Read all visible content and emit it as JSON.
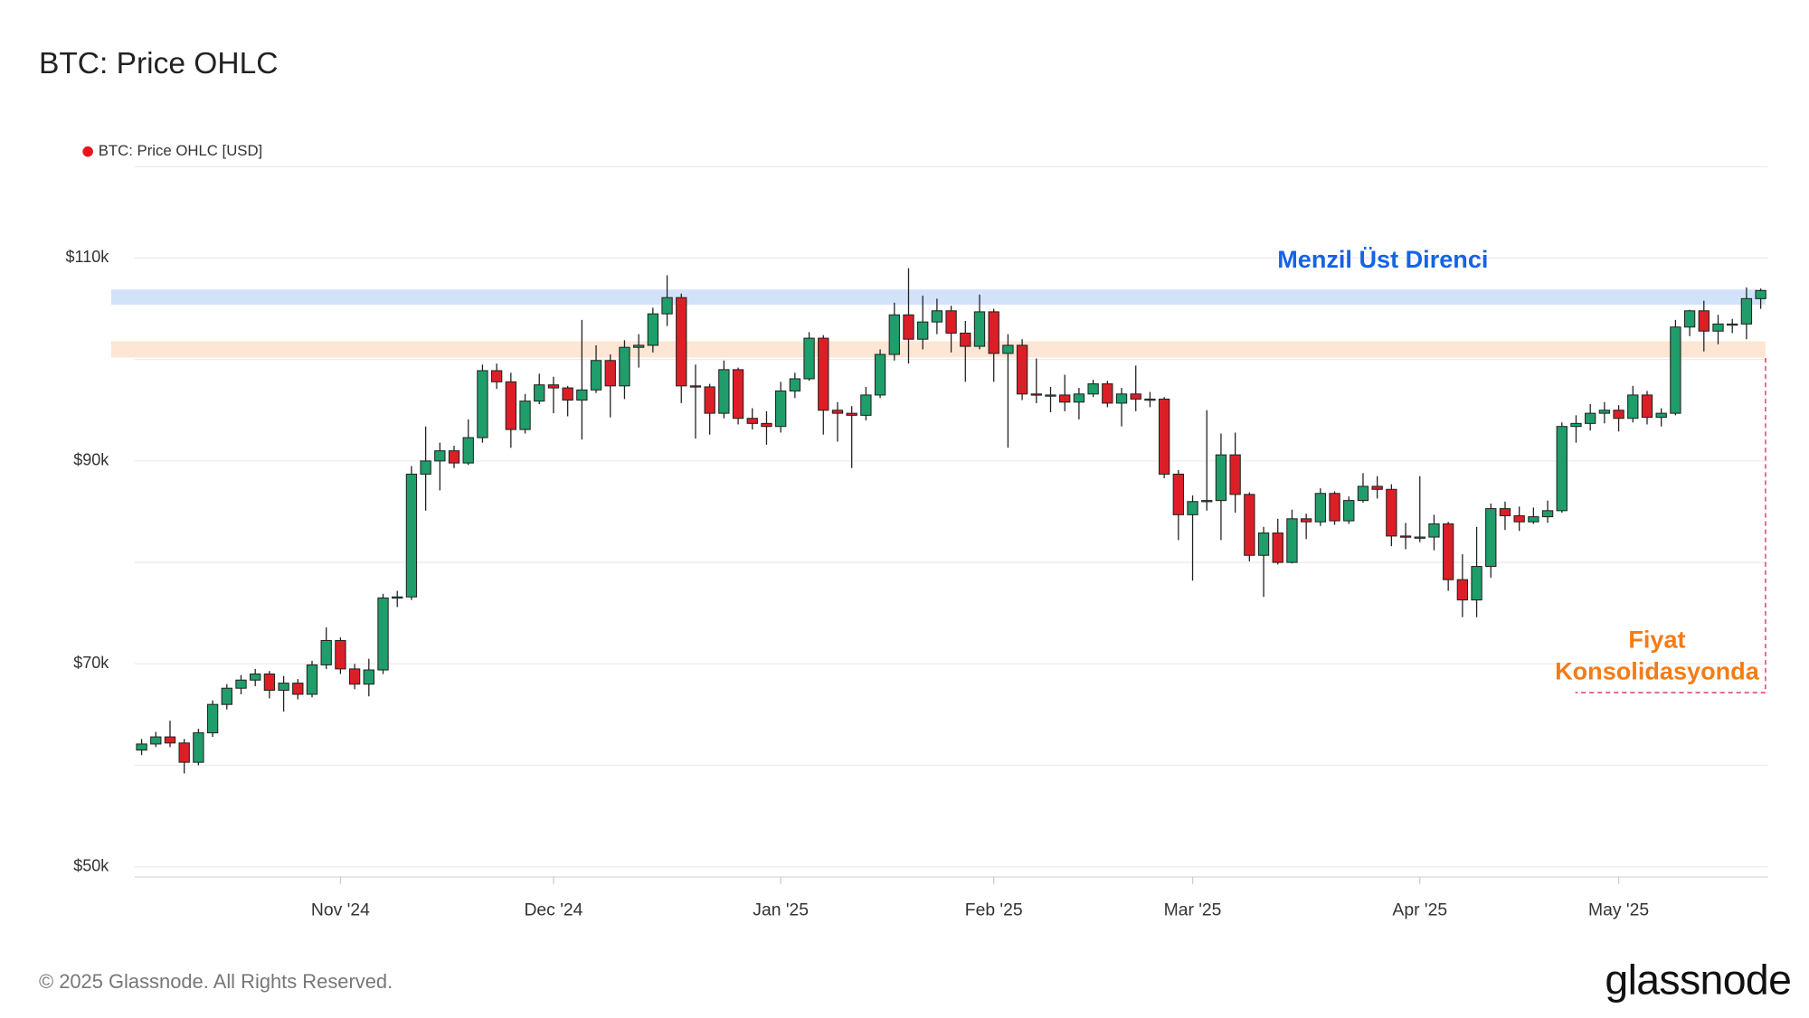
{
  "chart_data": {
    "type": "candlestick",
    "title": "BTC: Price OHLC",
    "legend": {
      "label": "BTC: Price OHLC [USD]",
      "color": "#e8141b",
      "position": "top-left"
    },
    "footer": "© 2025 Glassnode. All Rights Reserved.",
    "brand": "glassnode",
    "categories": [
      null,
      null,
      null,
      null,
      null,
      null,
      null,
      null,
      null,
      null,
      null,
      null,
      null,
      null,
      "Nov '24",
      null,
      null,
      null,
      null,
      null,
      null,
      null,
      null,
      null,
      null,
      null,
      null,
      null,
      null,
      "Dec '24",
      null,
      null,
      null,
      null,
      null,
      null,
      null,
      null,
      null,
      null,
      null,
      null,
      null,
      null,
      null,
      "Jan '25",
      null,
      null,
      null,
      null,
      null,
      null,
      null,
      null,
      null,
      null,
      null,
      null,
      null,
      null,
      "Feb '25",
      null,
      null,
      null,
      null,
      null,
      null,
      null,
      null,
      null,
      null,
      null,
      null,
      null,
      "Mar '25",
      null,
      null,
      null,
      null,
      null,
      null,
      null,
      null,
      null,
      null,
      null,
      null,
      null,
      null,
      null,
      "Apr '25",
      null,
      null,
      null,
      null,
      null,
      null,
      null,
      null,
      null,
      null,
      null,
      null,
      null,
      "May '25",
      null,
      null,
      null,
      null,
      null,
      null,
      null,
      null,
      null,
      null
    ],
    "open": [
      61500,
      62100,
      62800,
      62200,
      60300,
      63200,
      66000,
      67600,
      68400,
      69000,
      67400,
      68100,
      67000,
      69900,
      72300,
      69500,
      68000,
      69400,
      76500,
      76600,
      88700,
      90000,
      91000,
      89800,
      92300,
      98900,
      97800,
      93100,
      95900,
      97500,
      97200,
      96000,
      97000,
      99900,
      97400,
      101200,
      101400,
      104500,
      106100,
      97400,
      97300,
      94700,
      99000,
      94200,
      93700,
      93400,
      96900,
      98100,
      102100,
      95000,
      94700,
      94500,
      96500,
      100500,
      104400,
      102000,
      103700,
      104800,
      102600,
      101300,
      104700,
      100600,
      101400,
      96600,
      96500,
      96500,
      95800,
      96600,
      97600,
      95700,
      96600,
      96100,
      96100,
      88700,
      84700,
      86000,
      86100,
      90600,
      86700,
      80700,
      82900,
      80000,
      84300,
      84000,
      86800,
      84100,
      86100,
      87500,
      87200,
      82600,
      82500,
      82500,
      83800,
      78300,
      76300,
      79600,
      85300,
      84600,
      84000,
      84500,
      85100,
      93400,
      93700,
      94700,
      95000,
      94200,
      96500,
      94300,
      94700,
      103200,
      104800,
      102800,
      103500,
      103500,
      106000
    ],
    "high": [
      62600,
      63300,
      64400,
      62600,
      63600,
      66400,
      68000,
      68900,
      69500,
      69300,
      68800,
      68500,
      70300,
      73600,
      72600,
      70000,
      70500,
      76900,
      77200,
      89500,
      93400,
      91800,
      91500,
      94100,
      99500,
      99600,
      98700,
      96600,
      98600,
      98300,
      97400,
      103900,
      101400,
      100500,
      101900,
      102500,
      105100,
      108300,
      106500,
      99500,
      97600,
      99900,
      99200,
      95200,
      94900,
      97800,
      98700,
      102700,
      102400,
      95800,
      95400,
      97300,
      101000,
      105600,
      109000,
      106300,
      106000,
      105300,
      103800,
      106400,
      105000,
      102500,
      102000,
      100100,
      97300,
      98500,
      97200,
      98000,
      97900,
      97200,
      99400,
      96800,
      96300,
      89100,
      86600,
      95000,
      92700,
      92800,
      86900,
      83500,
      84300,
      85200,
      84800,
      87300,
      87000,
      86500,
      88800,
      88500,
      87700,
      83900,
      88500,
      84700,
      84000,
      80800,
      83500,
      85800,
      86000,
      85500,
      85400,
      86100,
      93800,
      94500,
      95600,
      95800,
      95500,
      97400,
      96900,
      95200,
      103900,
      104900,
      105800,
      104400,
      104000,
      107100,
      107000
    ],
    "low": [
      61000,
      61800,
      61800,
      59200,
      60000,
      62800,
      65500,
      67000,
      67800,
      66600,
      65300,
      66500,
      66700,
      69500,
      69000,
      67500,
      66800,
      69000,
      75600,
      76300,
      85100,
      87100,
      89300,
      89600,
      91800,
      97100,
      91300,
      92700,
      95600,
      94700,
      94400,
      92100,
      96700,
      94300,
      96100,
      99200,
      100700,
      103300,
      95700,
      92200,
      92600,
      94200,
      93600,
      93100,
      91600,
      92800,
      96200,
      97900,
      92600,
      91900,
      89300,
      94000,
      96200,
      99900,
      99600,
      101000,
      102500,
      100700,
      97800,
      101000,
      97800,
      91300,
      96000,
      95700,
      94800,
      94900,
      94100,
      96300,
      95300,
      93400,
      94900,
      95300,
      88300,
      82200,
      78200,
      85100,
      82200,
      84900,
      80100,
      76600,
      79800,
      79900,
      82300,
      83600,
      83700,
      83800,
      85900,
      86300,
      81600,
      81300,
      82000,
      81200,
      77200,
      74600,
      74600,
      78500,
      83200,
      83100,
      83800,
      83900,
      84900,
      91800,
      93000,
      93700,
      92900,
      93800,
      93600,
      93400,
      94500,
      102300,
      100800,
      101500,
      102600,
      102000,
      105000
    ],
    "close": [
      62100,
      62800,
      62200,
      60300,
      63200,
      66000,
      67600,
      68400,
      69000,
      67400,
      68100,
      67000,
      69900,
      72300,
      69500,
      68000,
      69400,
      76500,
      76600,
      88700,
      90000,
      91000,
      89800,
      92300,
      98900,
      97800,
      93100,
      95900,
      97500,
      97200,
      96000,
      97000,
      99900,
      97400,
      101200,
      101400,
      104500,
      106100,
      97400,
      97300,
      94700,
      99000,
      94200,
      93700,
      93400,
      96900,
      98100,
      102100,
      95000,
      94700,
      94500,
      96500,
      100500,
      104400,
      102000,
      103700,
      104800,
      102600,
      101300,
      104700,
      100600,
      101400,
      96600,
      96500,
      96500,
      95800,
      96600,
      97600,
      95700,
      96600,
      96100,
      96100,
      88700,
      84700,
      86000,
      86100,
      90600,
      86700,
      80700,
      82900,
      80000,
      84300,
      84000,
      86800,
      84100,
      86100,
      87500,
      87200,
      82600,
      82500,
      82500,
      83800,
      78300,
      76300,
      79600,
      85300,
      84600,
      84000,
      84500,
      85100,
      93400,
      93700,
      94700,
      95000,
      94200,
      96500,
      94300,
      94700,
      103200,
      104800,
      102800,
      103500,
      103500,
      106000,
      106800
    ],
    "up_color": "#1f9d6a",
    "down_color": "#dc1f26",
    "ylim": [
      49000,
      119000
    ],
    "yticks": [
      {
        "value": 50000,
        "label": "$50k"
      },
      {
        "value": 70000,
        "label": "$70k"
      },
      {
        "value": 90000,
        "label": "$90k"
      },
      {
        "value": 110000,
        "label": "$110k"
      }
    ],
    "minor_gridlines": [
      60000,
      80000,
      100000
    ],
    "grid": true,
    "bands": [
      {
        "range": [
          105400,
          106900
        ],
        "color": "#d3e2fb"
      },
      {
        "range": [
          100200,
          101800
        ],
        "color": "#fde6d3"
      }
    ],
    "annotations": [
      {
        "lines": [
          "Menzil Üst Direnci"
        ],
        "color": "#1563e6"
      },
      {
        "lines": [
          "Fiyat",
          "Konsolidasyonda"
        ],
        "color": "#f57c14"
      }
    ]
  }
}
